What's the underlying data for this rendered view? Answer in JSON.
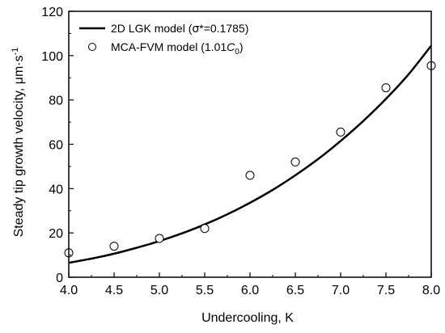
{
  "chart_data": {
    "type": "scatter",
    "xlabel": "Undercooling, K",
    "ylabel": "Steady tip growth velocity, μm·s",
    "ylabel_sup": "-1",
    "xlim": [
      4.0,
      8.0
    ],
    "ylim": [
      0,
      120
    ],
    "xticks": [
      "4.0",
      "4.5",
      "5.0",
      "5.5",
      "6.0",
      "6.5",
      "7.0",
      "7.5",
      "8.0"
    ],
    "yticks": [
      "0",
      "20",
      "40",
      "60",
      "80",
      "100",
      "120"
    ],
    "grid": false,
    "legend_position": "top-left",
    "series": [
      {
        "name": "2D LGK model (σ*=0.1785)",
        "legend_main": "2D LGK model (",
        "legend_sym": "σ",
        "legend_tail": "*=0.1785)",
        "style": "line",
        "color": "#000000",
        "x": [
          4.0,
          4.25,
          4.5,
          4.75,
          5.0,
          5.25,
          5.5,
          5.75,
          6.0,
          6.25,
          6.5,
          6.75,
          7.0,
          7.25,
          7.5,
          7.75,
          8.0
        ],
        "y": [
          6.5,
          8.4,
          10.6,
          13.3,
          16.3,
          19.8,
          23.8,
          28.4,
          33.6,
          39.4,
          46.0,
          53.3,
          61.5,
          70.5,
          80.5,
          91.6,
          104.5
        ]
      },
      {
        "name": "MCA-FVM model (1.01C0)",
        "legend_main": "MCA-FVM model (1.01",
        "legend_c": "C",
        "legend_sub": "0",
        "legend_tail": ")",
        "style": "marker-open-circle",
        "color": "#000000",
        "x": [
          4.0,
          4.5,
          5.0,
          5.5,
          6.0,
          6.5,
          7.0,
          7.5,
          8.0
        ],
        "y": [
          11,
          14,
          17.5,
          22,
          46,
          52,
          65.5,
          85.5,
          95.5
        ]
      }
    ]
  }
}
